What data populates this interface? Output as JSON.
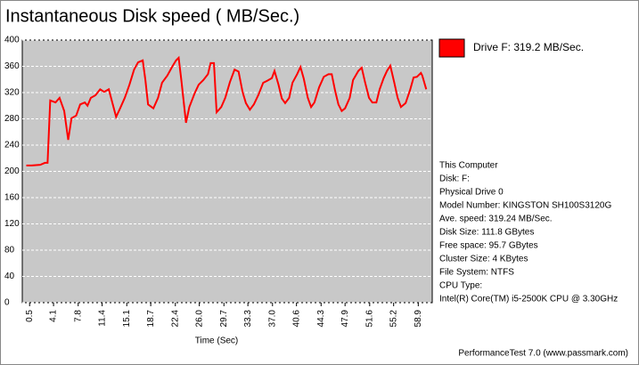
{
  "chart_data": {
    "type": "line",
    "title": "Instantaneous Disk speed ( MB/Sec.)",
    "x_label": "Time (Sec)",
    "x": [
      0,
      0.8,
      2.1,
      2.8,
      3.2,
      3.6,
      4.4,
      5.0,
      5.7,
      6.3,
      6.8,
      7.5,
      8.1,
      8.8,
      9.2,
      9.7,
      10.4,
      11.1,
      11.7,
      12.4,
      13.0,
      13.5,
      14.1,
      14.8,
      15.5,
      16.2,
      16.8,
      17.5,
      17.9,
      18.3,
      19.1,
      19.8,
      20.4,
      21.2,
      21.9,
      22.5,
      22.9,
      23.3,
      24.0,
      24.5,
      25.3,
      25.9,
      26.6,
      27.3,
      27.7,
      28.2,
      28.6,
      29.3,
      29.9,
      30.6,
      31.3,
      31.9,
      32.5,
      33.0,
      33.6,
      34.2,
      34.9,
      35.6,
      36.2,
      36.9,
      37.3,
      37.9,
      38.4,
      38.9,
      39.5,
      40.0,
      40.7,
      41.2,
      41.7,
      42.3,
      42.8,
      43.3,
      44.0,
      44.7,
      45.4,
      45.9,
      46.4,
      46.9,
      47.4,
      47.9,
      48.6,
      49.1,
      49.9,
      50.4,
      50.9,
      51.5,
      52.0,
      52.6,
      53.1,
      53.7,
      54.2,
      54.7,
      55.3,
      55.8,
      56.3,
      57.0,
      57.7,
      58.2,
      58.7,
      59.3,
      59.5,
      60.1
    ],
    "series": [
      {
        "name": "Drive F: 319.2 MB/Sec.",
        "color": "#ff0000",
        "values": [
          209,
          209,
          210,
          213,
          213,
          308,
          305,
          312,
          292,
          248,
          281,
          285,
          302,
          305,
          300,
          312,
          316,
          325,
          321,
          325,
          302,
          283,
          296,
          312,
          332,
          355,
          366,
          369,
          339,
          302,
          296,
          312,
          335,
          346,
          359,
          369,
          373,
          339,
          274,
          298,
          319,
          332,
          339,
          348,
          365,
          365,
          290,
          298,
          312,
          336,
          355,
          352,
          321,
          304,
          294,
          302,
          317,
          335,
          338,
          342,
          353,
          332,
          311,
          304,
          312,
          335,
          348,
          359,
          341,
          312,
          298,
          305,
          328,
          344,
          348,
          348,
          323,
          302,
          292,
          296,
          312,
          339,
          353,
          358,
          336,
          312,
          305,
          305,
          325,
          342,
          353,
          361,
          335,
          312,
          298,
          304,
          325,
          343,
          344,
          350,
          346,
          325
        ]
      }
    ],
    "xlim": [
      -0.6,
      61
    ],
    "ylim": [
      0,
      400
    ],
    "xticks": [
      0.5,
      4.1,
      7.8,
      11.4,
      15.1,
      18.7,
      22.4,
      {
        "value": 26,
        "label": "26.0"
      },
      29.7,
      33.3,
      {
        "value": 37,
        "label": "37.0"
      },
      40.6,
      44.3,
      47.9,
      51.6,
      55.2,
      58.9
    ],
    "yticks": [
      0,
      40,
      80,
      120,
      160,
      200,
      240,
      280,
      320,
      360,
      400
    ],
    "grid": true,
    "plot_background": "#c8c8c8",
    "legend_position": "right"
  },
  "info": [
    "This Computer",
    "Disk: F:",
    "Physical Drive 0",
    "Model Number: KINGSTON SH100S3120G",
    "Ave. speed: 319.24 MB/Sec.",
    "Disk Size: 111.8 GBytes",
    "Free space: 95.7 GBytes",
    "Cluster Size: 4 KBytes",
    "File System: NTFS",
    "CPU Type:",
    "Intel(R) Core(TM) i5-2500K CPU @ 3.30GHz"
  ],
  "footer": "PerformanceTest 7.0 (www.passmark.com)"
}
